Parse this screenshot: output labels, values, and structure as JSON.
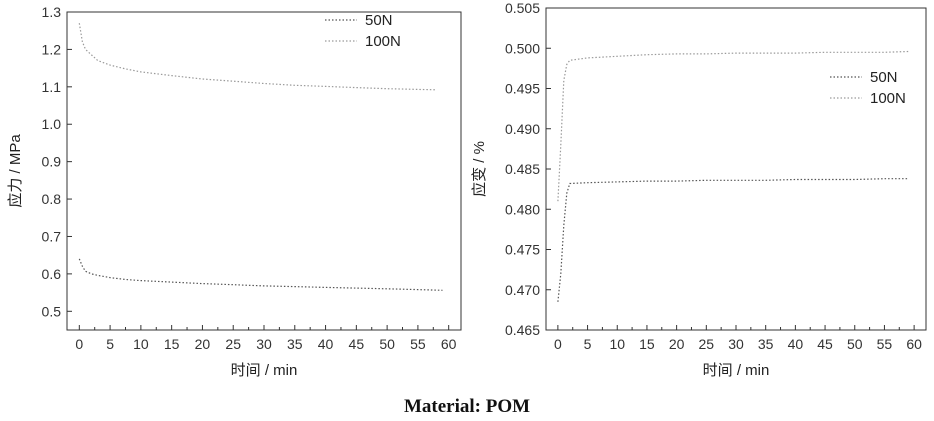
{
  "caption": "Material: POM",
  "chart_data": [
    {
      "type": "line",
      "xlabel": "时间 / min",
      "ylabel": "应力 / MPa",
      "xlim": [
        -2,
        62
      ],
      "ylim": [
        0.45,
        1.3
      ],
      "xticks": [
        "0",
        "5",
        "10",
        "15",
        "20",
        "25",
        "30",
        "35",
        "40",
        "45",
        "50",
        "55",
        "60"
      ],
      "yticks": [
        "0.5",
        "0.6",
        "0.7",
        "0.8",
        "0.9",
        "1.0",
        "1.1",
        "1.2",
        "1.3"
      ],
      "legend_position": "top-right",
      "series": [
        {
          "name": "50N",
          "color": "#555555",
          "dash": "dotted",
          "x": [
            0,
            0.5,
            1,
            2,
            3,
            5,
            7.5,
            10,
            15,
            20,
            25,
            30,
            35,
            40,
            45,
            50,
            55,
            59
          ],
          "y": [
            0.64,
            0.62,
            0.607,
            0.6,
            0.596,
            0.59,
            0.585,
            0.582,
            0.578,
            0.574,
            0.571,
            0.568,
            0.566,
            0.564,
            0.562,
            0.56,
            0.558,
            0.556
          ]
        },
        {
          "name": "100N",
          "color": "#9a9a9a",
          "dash": "dotted",
          "x": [
            0,
            0.5,
            1,
            2,
            3,
            5,
            7.5,
            10,
            15,
            20,
            25,
            30,
            35,
            40,
            45,
            50,
            55,
            58
          ],
          "y": [
            1.27,
            1.22,
            1.2,
            1.185,
            1.17,
            1.158,
            1.148,
            1.14,
            1.13,
            1.121,
            1.115,
            1.109,
            1.104,
            1.101,
            1.098,
            1.095,
            1.093,
            1.092
          ]
        }
      ]
    },
    {
      "type": "line",
      "xlabel": "时间 / min",
      "ylabel": "应变 / %",
      "xlim": [
        -2,
        62
      ],
      "ylim": [
        0.465,
        0.505
      ],
      "xticks": [
        "0",
        "5",
        "10",
        "15",
        "20",
        "25",
        "30",
        "35",
        "40",
        "45",
        "50",
        "55",
        "60"
      ],
      "yticks": [
        "0.465",
        "0.470",
        "0.475",
        "0.480",
        "0.485",
        "0.490",
        "0.495",
        "0.500",
        "0.505"
      ],
      "legend_position": "right",
      "series": [
        {
          "name": "50N",
          "color": "#555555",
          "dash": "dotted",
          "x": [
            0,
            0.5,
            1,
            1.5,
            2,
            5,
            10,
            15,
            20,
            25,
            30,
            35,
            40,
            45,
            50,
            55,
            59
          ],
          "y": [
            0.4685,
            0.472,
            0.478,
            0.482,
            0.4832,
            0.4833,
            0.4834,
            0.4835,
            0.4835,
            0.4836,
            0.4836,
            0.4836,
            0.4837,
            0.4837,
            0.4837,
            0.4838,
            0.4838
          ]
        },
        {
          "name": "100N",
          "color": "#9a9a9a",
          "dash": "dotted",
          "x": [
            0,
            0.5,
            1,
            1.5,
            2,
            5,
            10,
            15,
            20,
            25,
            30,
            35,
            40,
            45,
            50,
            55,
            59
          ],
          "y": [
            0.481,
            0.488,
            0.496,
            0.498,
            0.4985,
            0.4988,
            0.499,
            0.4992,
            0.4993,
            0.4993,
            0.4994,
            0.4994,
            0.4994,
            0.4995,
            0.4995,
            0.4995,
            0.4996
          ]
        }
      ]
    }
  ]
}
